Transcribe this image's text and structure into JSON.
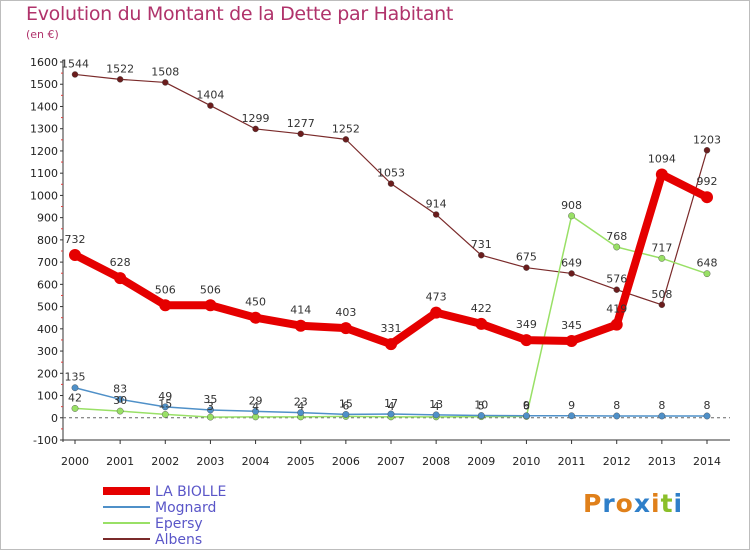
{
  "title": "Evolution du Montant de la Dette par Habitant",
  "subtitle": "(en €)",
  "logo": {
    "text": "Proxiti",
    "colors": [
      "#e0801a",
      "#2f7fc9",
      "#e0801a",
      "#2f7fc9",
      "#e0801a",
      "#8bbf2a",
      "#2f7fc9"
    ]
  },
  "chart_data": {
    "type": "line",
    "title": "Evolution du Montant de la Dette par Habitant",
    "ylabel": "(en €)",
    "xlabel": "",
    "ylim": [
      -100,
      1600
    ],
    "yticks": [
      -100,
      0,
      100,
      200,
      300,
      400,
      500,
      600,
      700,
      800,
      900,
      1000,
      1100,
      1200,
      1300,
      1400,
      1500,
      1600
    ],
    "grid": false,
    "legend_position": "bottom-left",
    "categories": [
      "2000",
      "2001",
      "2002",
      "2003",
      "2004",
      "2005",
      "2006",
      "2007",
      "2008",
      "2009",
      "2010",
      "2011",
      "2012",
      "2013",
      "2014"
    ],
    "series": [
      {
        "name": "LA BIOLLE",
        "color": "#e50000",
        "values": [
          732,
          628,
          506,
          506,
          450,
          414,
          403,
          331,
          473,
          422,
          349,
          345,
          419,
          1094,
          992
        ],
        "labels": [
          "732",
          "628",
          "506",
          "506",
          "450",
          "414",
          "403",
          "331",
          "473",
          "422",
          "349",
          "345",
          "419",
          "1094",
          "992"
        ]
      },
      {
        "name": "Mognard",
        "color": "#4f90c8",
        "values": [
          135,
          83,
          49,
          35,
          29,
          23,
          15,
          17,
          13,
          10,
          9,
          9,
          8,
          8,
          8
        ],
        "labels": [
          "135",
          "83",
          "49",
          "35",
          "29",
          "23",
          "15",
          "17",
          "13",
          "10",
          "9",
          "9",
          "8",
          "8",
          "8"
        ]
      },
      {
        "name": "Epersy",
        "color": "#99e066",
        "values": [
          42,
          30,
          15,
          3,
          4,
          4,
          6,
          4,
          4,
          5,
          6,
          908,
          768,
          717,
          648
        ],
        "labels": [
          "42",
          "30",
          "15",
          "3",
          "4",
          "4",
          "6",
          "4",
          "4",
          "5",
          "6",
          "908",
          "768",
          "717",
          "648"
        ]
      },
      {
        "name": "Albens",
        "color": "#7a2a2a",
        "values": [
          1544,
          1522,
          1508,
          1404,
          1299,
          1277,
          1252,
          1053,
          914,
          731,
          675,
          649,
          576,
          508,
          1203
        ],
        "labels": [
          "1544",
          "1522",
          "1508",
          "1404",
          "1299",
          "1277",
          "1252",
          "1053",
          "914",
          "731",
          "675",
          "649",
          "576",
          "508",
          "1203"
        ]
      }
    ]
  }
}
